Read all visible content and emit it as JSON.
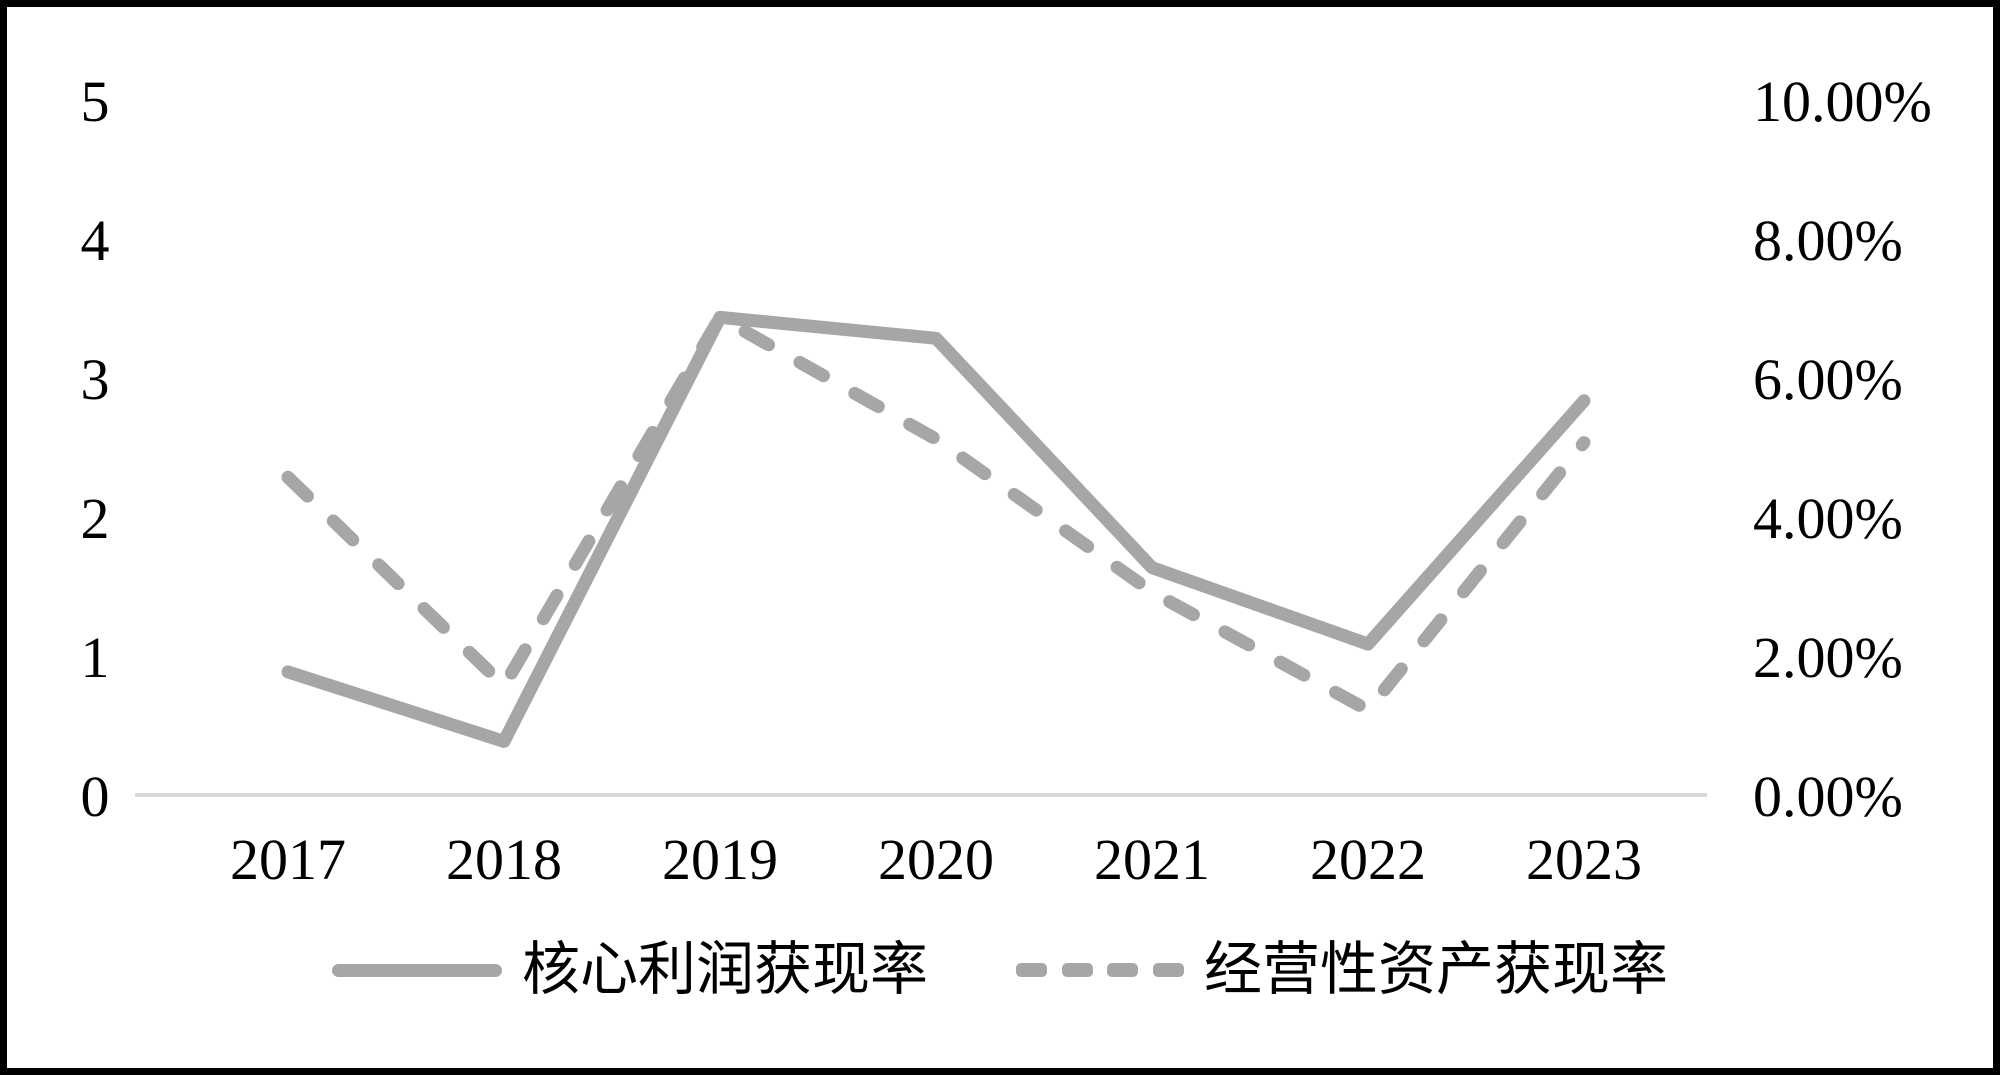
{
  "chart_data": {
    "type": "line",
    "title": "",
    "categories": [
      "2017",
      "2018",
      "2019",
      "2020",
      "2021",
      "2022",
      "2023"
    ],
    "series": [
      {
        "name": "核心利润获现率",
        "axis": "left",
        "line_style": "solid",
        "values": [
          0.9,
          0.4,
          3.45,
          3.3,
          1.65,
          1.1,
          2.85
        ]
      },
      {
        "name": "经营性资产获现率",
        "axis": "right",
        "line_style": "dashed",
        "unit": "%",
        "values": [
          4.6,
          1.6,
          6.9,
          5.15,
          2.95,
          1.25,
          5.1
        ]
      }
    ],
    "left_axis": {
      "min": 0,
      "max": 5,
      "ticks": [
        "0",
        "1",
        "2",
        "3",
        "4",
        "5"
      ]
    },
    "right_axis": {
      "min": 0,
      "max": 10,
      "ticks": [
        "0.00%",
        "2.00%",
        "4.00%",
        "6.00%",
        "8.00%",
        "10.00%"
      ]
    },
    "legend": {
      "position": "bottom",
      "entries": [
        "核心利润获现率",
        "经营性资产获现率"
      ]
    },
    "grid": {
      "baseline_only": true
    },
    "colors": {
      "line": "#a6a6a6",
      "gridline": "#d9d9d9",
      "text": "#000000",
      "background": "#ffffff",
      "border": "#000000"
    }
  }
}
